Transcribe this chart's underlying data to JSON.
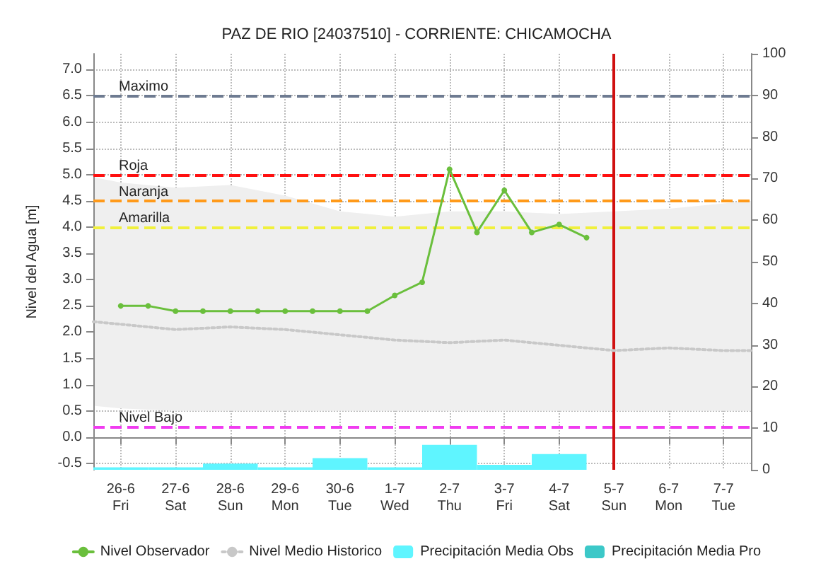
{
  "chart_data": {
    "type": "line",
    "title": "PAZ DE RIO [24037510] - CORRIENTE: CHICAMOCHA",
    "ylabel": "Nivel del Agua [m]",
    "xlim": [
      "--06-25T12:00",
      "--07-07T12:00"
    ],
    "xticks": [
      {
        "value": "--06-26",
        "label": "26-6\nFri"
      },
      {
        "value": "--06-27",
        "label": "27-6\nSat"
      },
      {
        "value": "--06-28",
        "label": "28-6\nSun"
      },
      {
        "value": "--06-29",
        "label": "29-6\nMon"
      },
      {
        "value": "--06-30",
        "label": "30-6\nTue"
      },
      {
        "value": "--07-01",
        "label": "1-7\nWed"
      },
      {
        "value": "--07-02",
        "label": "2-7\nThu"
      },
      {
        "value": "--07-03",
        "label": "3-7\nFri"
      },
      {
        "value": "--07-04",
        "label": "4-7\nSat"
      },
      {
        "value": "--07-05",
        "label": "5-7\nSun"
      },
      {
        "value": "--07-06",
        "label": "6-7\nMon"
      },
      {
        "value": "--07-07",
        "label": "7-7\nTue"
      }
    ],
    "ylim": [
      -0.62,
      7.3
    ],
    "yticks": [
      -0.5,
      {
        "value": 0,
        "label": "0.0"
      },
      0.5,
      {
        "value": 1,
        "label": "1.0"
      },
      1.5,
      {
        "value": 2,
        "label": "2.0"
      },
      2.5,
      {
        "value": 3,
        "label": "3.0"
      },
      3.5,
      {
        "value": 4,
        "label": "4.0"
      },
      4.5,
      {
        "value": 5,
        "label": "5.0"
      },
      5.5,
      {
        "value": 6,
        "label": "6.0"
      },
      6.5,
      {
        "value": 7,
        "label": "7.0"
      }
    ],
    "y2lim": [
      0,
      100
    ],
    "y2ticks": [
      0,
      10,
      20,
      30,
      40,
      50,
      60,
      70,
      80,
      90,
      100
    ],
    "grid": true,
    "legend": "bottom",
    "series": [
      {
        "name": "Nivel Observador",
        "color": "#6abf3c",
        "marker": "circle",
        "line_style": "solid",
        "x": [
          "--06-26",
          "--06-26T12:00",
          "--06-27",
          "--06-27T12:00",
          "--06-28",
          "--06-28T12:00",
          "--06-29",
          "--06-29T12:00",
          "--06-30",
          "--06-30T12:00",
          "--07-01",
          "--07-01T12:00",
          "--07-02",
          "--07-02T12:00",
          "--07-03",
          "--07-03T12:00",
          "--07-04",
          "--07-04T12:00"
        ],
        "values": [
          2.5,
          2.5,
          2.4,
          2.4,
          2.4,
          2.4,
          2.4,
          2.4,
          2.4,
          2.4,
          2.7,
          2.95,
          5.1,
          3.9,
          4.7,
          3.9,
          4.05,
          3.8
        ]
      },
      {
        "name": "Nivel Medio Historico",
        "type": "line",
        "color": "#c8c8c8",
        "marker": "none",
        "line_style": "dotted",
        "x": [
          "--06-25T12:00",
          "--06-26",
          "--06-27",
          "--06-28",
          "--06-29",
          "--06-30",
          "--07-01",
          "--07-02",
          "--07-03",
          "--07-04",
          "--07-05",
          "--07-06",
          "--07-07",
          "--07-07T12:00"
        ],
        "values": [
          2.2,
          2.15,
          2.05,
          2.1,
          2.05,
          1.95,
          1.85,
          1.8,
          1.85,
          1.75,
          1.65,
          1.7,
          1.65,
          1.65
        ],
        "lower": [
          0.6,
          0.55,
          0.5,
          0.5,
          0.5,
          0.5,
          0.5,
          0.5,
          0.5,
          0.5,
          0.5,
          0.5,
          0.5,
          0.5
        ],
        "upper": [
          4.95,
          4.85,
          4.75,
          4.8,
          4.6,
          4.3,
          4.2,
          4.3,
          4.3,
          4.25,
          4.3,
          4.35,
          4.45,
          4.5
        ]
      },
      {
        "name": "Precipitación Media Obs",
        "type": "bar",
        "axis": "y2",
        "color": "#5ff5ff",
        "x": [
          "--06-26",
          "--06-27",
          "--06-28",
          "--06-29",
          "--06-30",
          "--07-01",
          "--07-02",
          "--07-03",
          "--07-04"
        ],
        "values": [
          0.6,
          0.6,
          1.5,
          0.6,
          2.8,
          0.6,
          6,
          1.2,
          3.8
        ]
      },
      {
        "name": "Precipitación Media Pro",
        "type": "bar",
        "axis": "y2",
        "color": "#3cc8c8"
      }
    ],
    "ref_lines": [
      {
        "axis": "y",
        "value": 6.5,
        "label": "Maximo",
        "color": "#6e7b91",
        "line_style": "dashed"
      },
      {
        "axis": "y",
        "value": 5,
        "label": "Roja",
        "color": "#ff1010",
        "line_style": "dashed"
      },
      {
        "axis": "y",
        "value": 4.5,
        "label": "Naranja",
        "color": "#ff9a1a",
        "line_style": "dashed"
      },
      {
        "axis": "y",
        "value": 4,
        "label": "Amarilla",
        "color": "#f0f03c",
        "line_style": "dashed"
      },
      {
        "axis": "y",
        "value": 0.2,
        "label": "Nivel Bajo",
        "color": "#f03cf0",
        "line_style": "dashed"
      },
      {
        "axis": "x",
        "value": "--07-05",
        "label": null,
        "color": "#d01010",
        "line_style": "solid"
      }
    ]
  }
}
